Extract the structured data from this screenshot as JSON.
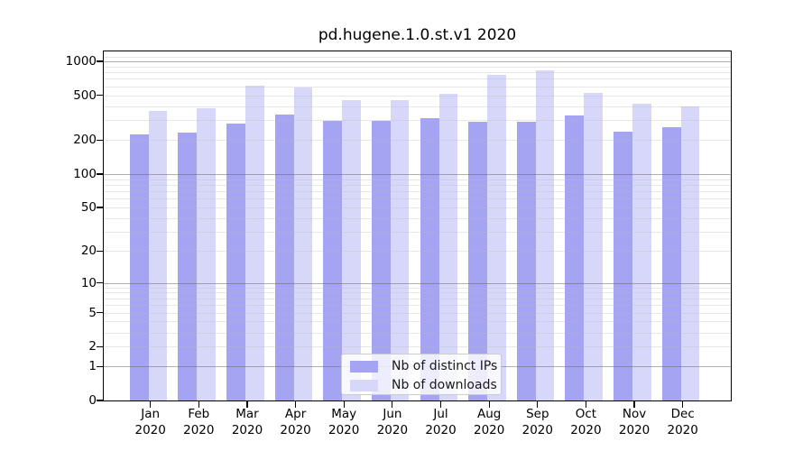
{
  "figure": {
    "title": "pd.hugene.1.0.st.v1 2020"
  },
  "chart_data": {
    "type": "bar",
    "title": "pd.hugene.1.0.st.v1 2020",
    "categories": [
      "Jan 2020",
      "Feb 2020",
      "Mar 2020",
      "Apr 2020",
      "May 2020",
      "Jun 2020",
      "Jul 2020",
      "Aug 2020",
      "Sep 2020",
      "Oct 2020",
      "Nov 2020",
      "Dec 2020"
    ],
    "x_tick_line1": [
      "Jan",
      "Feb",
      "Mar",
      "Apr",
      "May",
      "Jun",
      "Jul",
      "Aug",
      "Sep",
      "Oct",
      "Nov",
      "Dec"
    ],
    "x_tick_line2": "2020",
    "series": [
      {
        "name": "Nb of distinct IPs",
        "color": "#a4a4f2",
        "values": [
          225,
          233,
          280,
          339,
          297,
          297,
          314,
          292,
          292,
          330,
          240,
          261
        ]
      },
      {
        "name": "Nb of downloads",
        "color": "#d7d7fa",
        "values": [
          365,
          383,
          610,
          585,
          458,
          450,
          516,
          755,
          838,
          523,
          420,
          397
        ]
      }
    ],
    "xlabel": "",
    "ylabel": "",
    "yscale": "log1p",
    "ylim": [
      0,
      1250
    ],
    "y_tick_values": [
      0,
      1,
      2,
      5,
      10,
      20,
      50,
      100,
      200,
      500,
      1000
    ],
    "y_tick_labels": [
      "0",
      "1",
      "2",
      "5",
      "10",
      "20",
      "50",
      "100",
      "200",
      "500",
      "1000"
    ],
    "grid": "major and minor horizontal gridlines",
    "legend_position": "lower center"
  },
  "colors": {
    "bar_distinct_ips": "#a4a4f2",
    "bar_downloads": "#d7d7fa",
    "major_grid": "#b3b3b3",
    "minor_grid": "#e8e8e8",
    "axis": "#000000",
    "text": "#000000",
    "legend_border": "#cccccc"
  }
}
